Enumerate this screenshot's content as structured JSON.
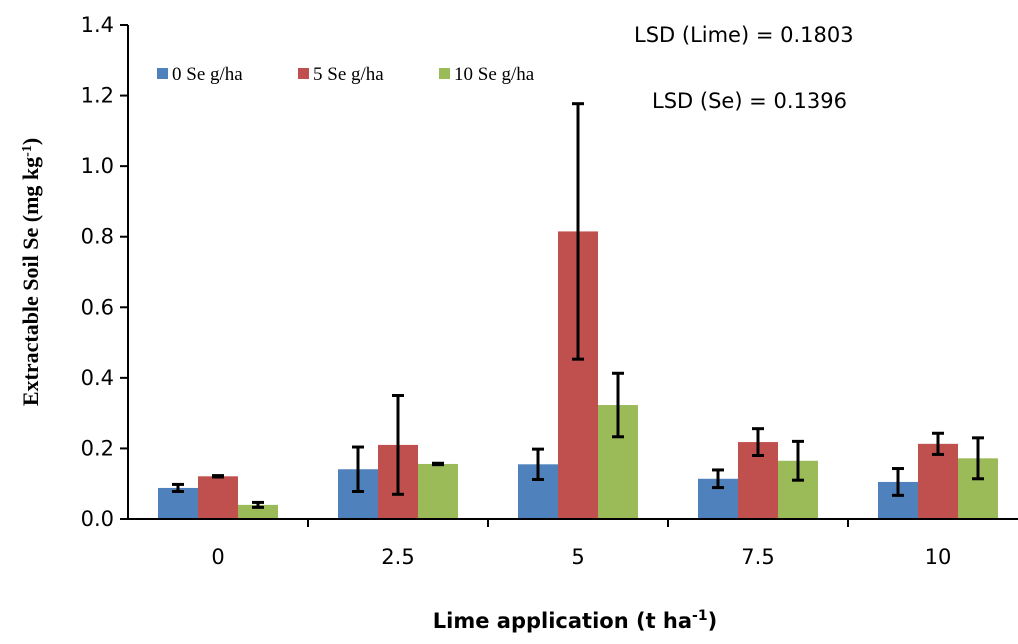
{
  "chart_data": {
    "type": "bar",
    "categories": [
      "0",
      "2.5",
      "5",
      "7.5",
      "10"
    ],
    "series": [
      {
        "name": "0 Se g/ha",
        "color": "#4F81BD",
        "values": [
          0.088,
          0.141,
          0.155,
          0.114,
          0.105
        ],
        "error": [
          0.01,
          0.063,
          0.043,
          0.025,
          0.038
        ]
      },
      {
        "name": "5 Se g/ha",
        "color": "#C0504D",
        "values": [
          0.121,
          0.21,
          0.815,
          0.218,
          0.213
        ],
        "error": [
          0.002,
          0.14,
          0.362,
          0.038,
          0.03
        ]
      },
      {
        "name": "10 Se g/ha",
        "color": "#9BBB59",
        "values": [
          0.04,
          0.156,
          0.323,
          0.165,
          0.172
        ],
        "error": [
          0.007,
          0.002,
          0.09,
          0.055,
          0.058
        ]
      }
    ],
    "ylim": [
      0,
      1.4
    ],
    "yticks": [
      "0.0",
      "0.2",
      "0.4",
      "0.6",
      "0.8",
      "1.0",
      "1.2",
      "1.4"
    ],
    "ylabel": {
      "main": "Extractable Soil Se (mg kg",
      "sup": "-1",
      "tail": ")"
    },
    "xlabel": {
      "main": "Lime application (t ha",
      "sup": "-1",
      "tail": ")"
    },
    "annotations": [
      "LSD (Lime) = 0.1803",
      "LSD (Se) = 0.1396"
    ],
    "legend_position": "top-left",
    "grid": false
  }
}
